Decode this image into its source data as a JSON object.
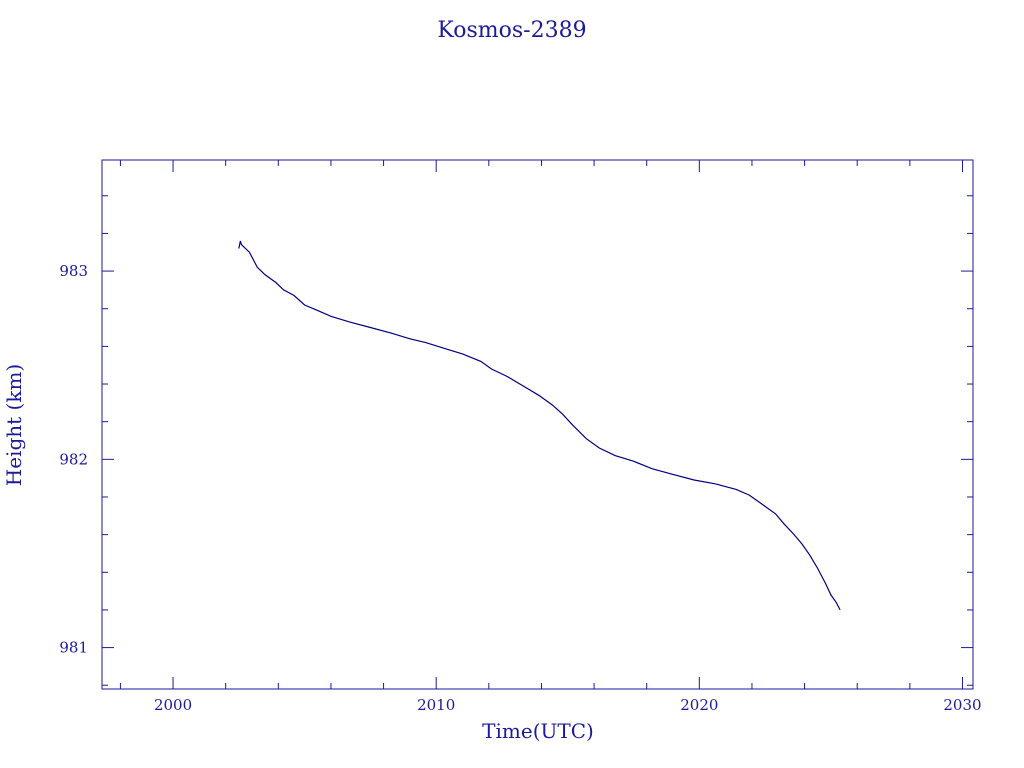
{
  "chart_data": {
    "type": "line",
    "title": "Kosmos-2389",
    "xlabel": "Time(UTC)",
    "ylabel": "Height (km)",
    "xlim": [
      1997.3,
      2030.4
    ],
    "ylim": [
      980.78,
      983.59
    ],
    "x_ticks": [
      2000,
      2010,
      2020,
      2030
    ],
    "x_tick_labels": [
      "2000",
      "2010",
      "2020",
      "2030"
    ],
    "x_minor_step": 2,
    "y_ticks": [
      981,
      982,
      983
    ],
    "y_tick_labels": [
      "981",
      "982",
      "983"
    ],
    "y_minor_step": 0.2,
    "grid": false,
    "colors": {
      "axes": "#1a1a9a",
      "line": "#000080"
    },
    "series": [
      {
        "x": [
          2002.5,
          2002.56,
          2002.6,
          2002.9,
          2003.2,
          2003.5,
          2003.9,
          2004.2,
          2004.6,
          2005.0,
          2005.5,
          2006.0,
          2006.7,
          2007.5,
          2008.3,
          2009.0,
          2009.6,
          2010.3,
          2011.0,
          2011.7,
          2012.1,
          2012.7,
          2013.3,
          2013.9,
          2014.4,
          2014.8,
          2015.2,
          2015.7,
          2016.2,
          2016.8,
          2017.5,
          2018.2,
          2019.0,
          2019.8,
          2020.6,
          2021.4,
          2021.9,
          2022.4,
          2022.9,
          2023.2,
          2023.6,
          2023.9,
          2024.2,
          2024.5,
          2024.8,
          2025.0,
          2025.2,
          2025.35
        ],
        "y": [
          983.12,
          983.16,
          983.14,
          983.1,
          983.02,
          982.98,
          982.94,
          982.9,
          982.87,
          982.82,
          982.79,
          982.76,
          982.73,
          982.7,
          982.67,
          982.64,
          982.62,
          982.59,
          982.56,
          982.52,
          982.48,
          982.44,
          982.39,
          982.34,
          982.29,
          982.24,
          982.18,
          982.11,
          982.06,
          982.02,
          981.99,
          981.95,
          981.92,
          981.89,
          981.87,
          981.84,
          981.81,
          981.76,
          981.71,
          981.66,
          981.6,
          981.55,
          981.49,
          981.42,
          981.34,
          981.28,
          981.24,
          981.2
        ]
      }
    ]
  }
}
